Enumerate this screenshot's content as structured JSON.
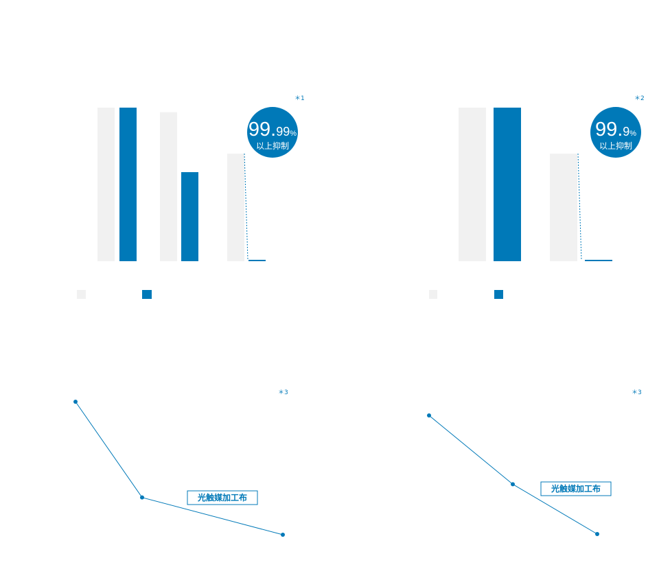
{
  "colors": {
    "accent": "#0079b8",
    "control": "#f1f1f1",
    "background": "#ffffff"
  },
  "chart_data": [
    {
      "type": "bar",
      "note": "＊1",
      "badge": {
        "main": "99.",
        "decimals": "99",
        "unit": "%",
        "caption": "以上抑制"
      },
      "ylim": [
        0,
        100
      ],
      "groups": [
        {
          "control": 100,
          "treated": 100
        },
        {
          "control": 97,
          "treated": 58
        },
        {
          "control": 70,
          "treated": 0.9
        }
      ]
    },
    {
      "type": "bar",
      "note": "＊2",
      "badge": {
        "main": "99.",
        "decimals": "9",
        "unit": "%",
        "caption": "以上抑制"
      },
      "ylim": [
        0,
        100
      ],
      "groups": [
        {
          "control": 100,
          "treated": 100
        },
        {
          "control": 70,
          "treated": 0.9
        }
      ]
    },
    {
      "type": "line",
      "note": "＊3",
      "tag": "光触媒加工布",
      "ylim": [
        0,
        100
      ],
      "values": [
        100,
        28,
        0
      ]
    },
    {
      "type": "line",
      "note": "＊3",
      "tag": "光触媒加工布",
      "ylim": [
        0,
        100
      ],
      "values": [
        100,
        42,
        0
      ]
    }
  ]
}
